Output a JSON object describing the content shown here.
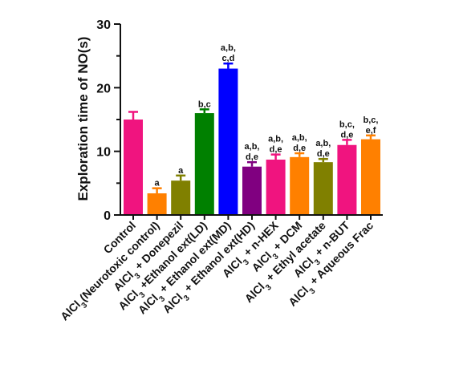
{
  "chart_data": {
    "type": "bar",
    "ylabel": "Exploration time of NO(s)",
    "ylim": [
      0,
      30
    ],
    "yticks": [
      "0",
      "10",
      "20",
      "30"
    ],
    "grid": false,
    "categories": [
      "Control",
      "AlCl3(Neurotoxic control)",
      "AlCl3 + Donepezil",
      "AlCl3 +Ethanol ext(LD)",
      "AlCl3 + Ethanol ext(MD)",
      "AlCl3 + Ethanol ext(HD)",
      "AlCl3 + n-HEX",
      "AlCl3 + DCM",
      "AlCl3 + Ethyl acetate",
      "AlCl3 + n-BUT",
      "AlCl3 + Aqueous Frac"
    ],
    "values": [
      15.0,
      3.4,
      5.4,
      16.0,
      23.0,
      7.6,
      8.7,
      9.1,
      8.3,
      11.0,
      11.9
    ],
    "errors": [
      1.2,
      0.8,
      0.8,
      0.6,
      0.8,
      0.7,
      0.8,
      0.6,
      0.5,
      0.8,
      0.6
    ],
    "colors": [
      "#f0147f",
      "#ff8000",
      "#808000",
      "#008000",
      "#0000ff",
      "#800080",
      "#f0147f",
      "#ff8000",
      "#808000",
      "#f0147f",
      "#ff8000"
    ],
    "annotations": [
      [],
      [
        "a"
      ],
      [
        "a"
      ],
      [
        "b,c"
      ],
      [
        "a,b,",
        "c,d"
      ],
      [
        "a,b,",
        "d,e"
      ],
      [
        "a,b,",
        "d,e"
      ],
      [
        "a,b,",
        "d,e"
      ],
      [
        "a,b,",
        "d,e"
      ],
      [
        "b,c,",
        "d,e"
      ],
      [
        "b,c,",
        "e,f"
      ]
    ]
  }
}
